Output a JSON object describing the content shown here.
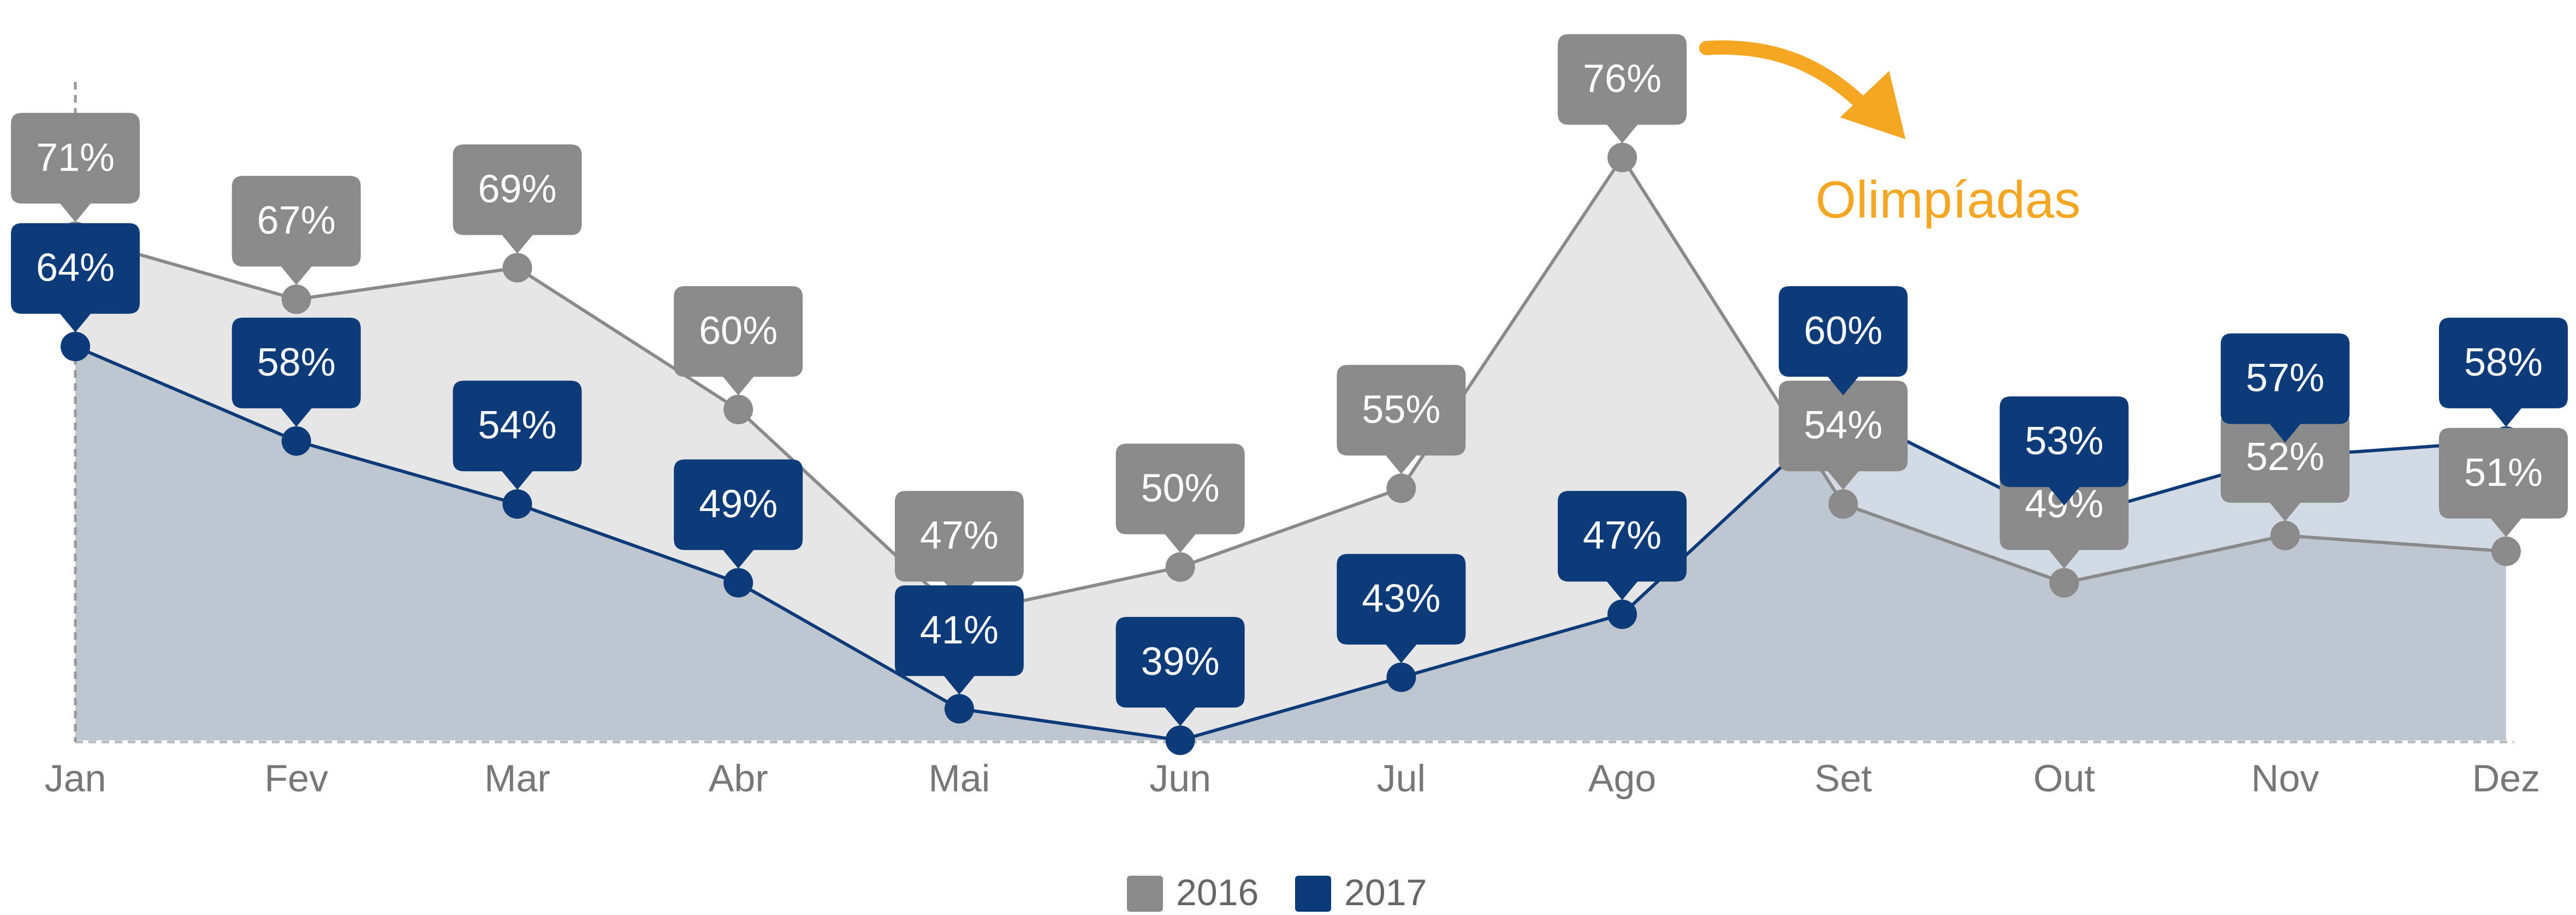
{
  "chart_data": {
    "type": "line",
    "categories": [
      "Jan",
      "Fev",
      "Mar",
      "Abr",
      "Mai",
      "Jun",
      "Jul",
      "Ago",
      "Set",
      "Out",
      "Nov",
      "Dez"
    ],
    "series": [
      {
        "name": "2016",
        "color": "#8a8a8a",
        "area_color": "#e6e6e6",
        "values": [
          71,
          67,
          69,
          60,
          47,
          50,
          55,
          76,
          54,
          49,
          52,
          51
        ],
        "value_labels": [
          "71%",
          "67%",
          "69%",
          "60%",
          "47%",
          "50%",
          "55%",
          "76%",
          "54%",
          "49%",
          "52%",
          "51%"
        ]
      },
      {
        "name": "2017",
        "color": "#0d3a78",
        "area_color": "rgba(30,70,120,0.2)",
        "values": [
          64,
          58,
          54,
          49,
          41,
          39,
          43,
          47,
          60,
          53,
          57,
          58
        ],
        "value_labels": [
          "64%",
          "58%",
          "54%",
          "49%",
          "41%",
          "39%",
          "43%",
          "47%",
          "60%",
          "53%",
          "57%",
          "58%"
        ]
      }
    ],
    "ylim": [
      39,
      86
    ],
    "annotation": {
      "text": "Olimpíadas",
      "color": "#f5a623"
    },
    "legend": "bottom"
  }
}
